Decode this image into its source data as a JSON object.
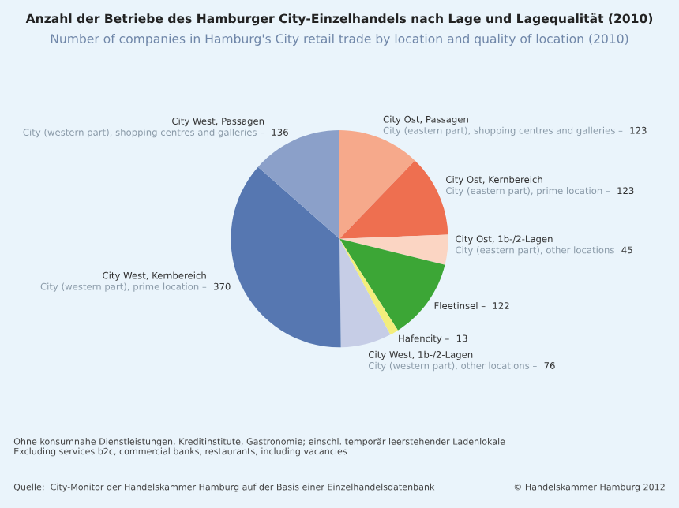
{
  "chart_data": {
    "type": "pie",
    "title": "Anzahl der Betriebe des Hamburger City-Einzelhandels nach Lage und Lagequalität (2010)",
    "subtitle": "Number of companies in Hamburg's City retail trade by location and quality of location (2010)",
    "categories": [
      "City Ost, Passagen\nCity (eastern part), shopping centres and galleries –",
      "City Ost, Kernbereich\nCity (eastern part), prime location –",
      "City Ost, 1b-/2-Lagen\nCity (eastern part), other locations",
      "Fleetinsel –",
      "Hafencity –",
      "City West, 1b-/2-Lagen\nCity (western part), other locations –",
      "City West, Kernbereich\nCity (western part), prime location –",
      "City West, Passagen\nCity (western part), shopping centres and galleries –"
    ],
    "values": [
      123,
      123,
      45,
      122,
      13,
      76,
      370,
      136
    ],
    "colors": [
      "#f6a98b",
      "#ee6f50",
      "#fbd5c3",
      "#3ca636",
      "#f3ee7c",
      "#c6cde6",
      "#5677b1",
      "#8ba0c9"
    ],
    "data_labels": true,
    "legend": false,
    "annotations": [
      "Ohne konsumnahe Dienstleistungen, Kreditinstitute, Gastronomie; einschl. temporär leerstehender Ladenlokale\nExcluding services b2c, commercial banks, restaurants, including vacancies",
      "Quelle:  City-Monitor der Handelskammer Hamburg auf der Basis einer Einzelhandelsdatenbank",
      "© Handelskammer Hamburg 2012"
    ]
  }
}
